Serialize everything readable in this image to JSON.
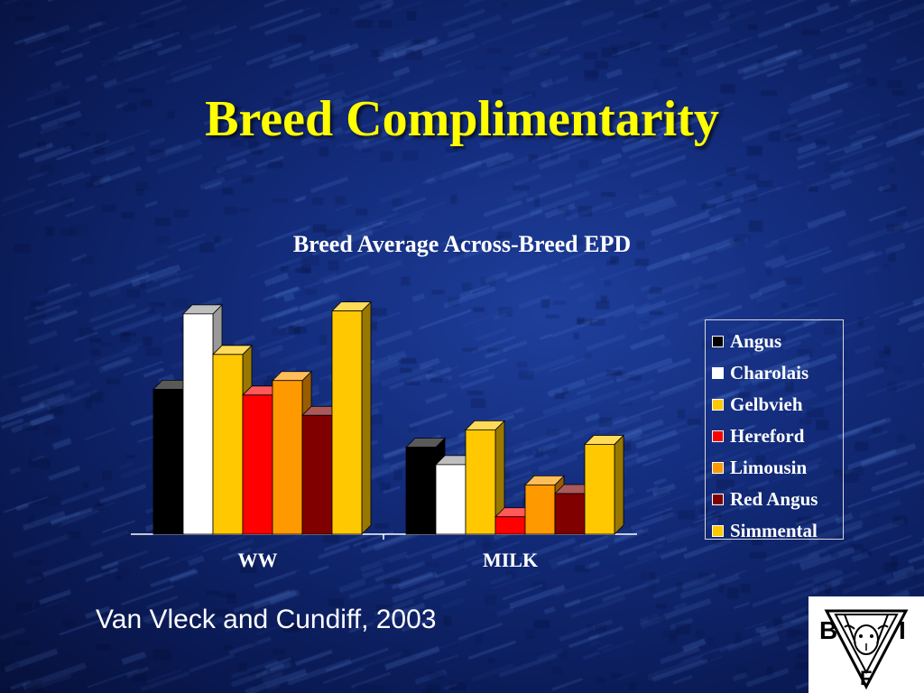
{
  "slide": {
    "title": "Breed Complimentarity",
    "citation": "Van Vleck and Cundiff, 2003"
  },
  "logo": {
    "letters": [
      "B",
      "I",
      "F"
    ]
  },
  "chart_data": {
    "type": "bar",
    "title": "Breed Average Across-Breed EPD",
    "categories": [
      "WW",
      "MILK"
    ],
    "ylim": [
      0,
      80
    ],
    "grid": false,
    "legend_position": "right",
    "series": [
      {
        "name": "Angus",
        "color": "#000000",
        "values": [
          50,
          30
        ]
      },
      {
        "name": "Charolais",
        "color": "#ffffff",
        "values": [
          76,
          24
        ]
      },
      {
        "name": "Gelbvieh",
        "color": "#ffc800",
        "values": [
          62,
          36
        ]
      },
      {
        "name": "Hereford",
        "color": "#ff0000",
        "values": [
          48,
          6
        ]
      },
      {
        "name": "Limousin",
        "color": "#ff9900",
        "values": [
          53,
          17
        ]
      },
      {
        "name": "Red Angus",
        "color": "#800000",
        "values": [
          41,
          14
        ]
      },
      {
        "name": "Simmental",
        "color": "#ffc800",
        "values": [
          77,
          31
        ]
      }
    ]
  }
}
